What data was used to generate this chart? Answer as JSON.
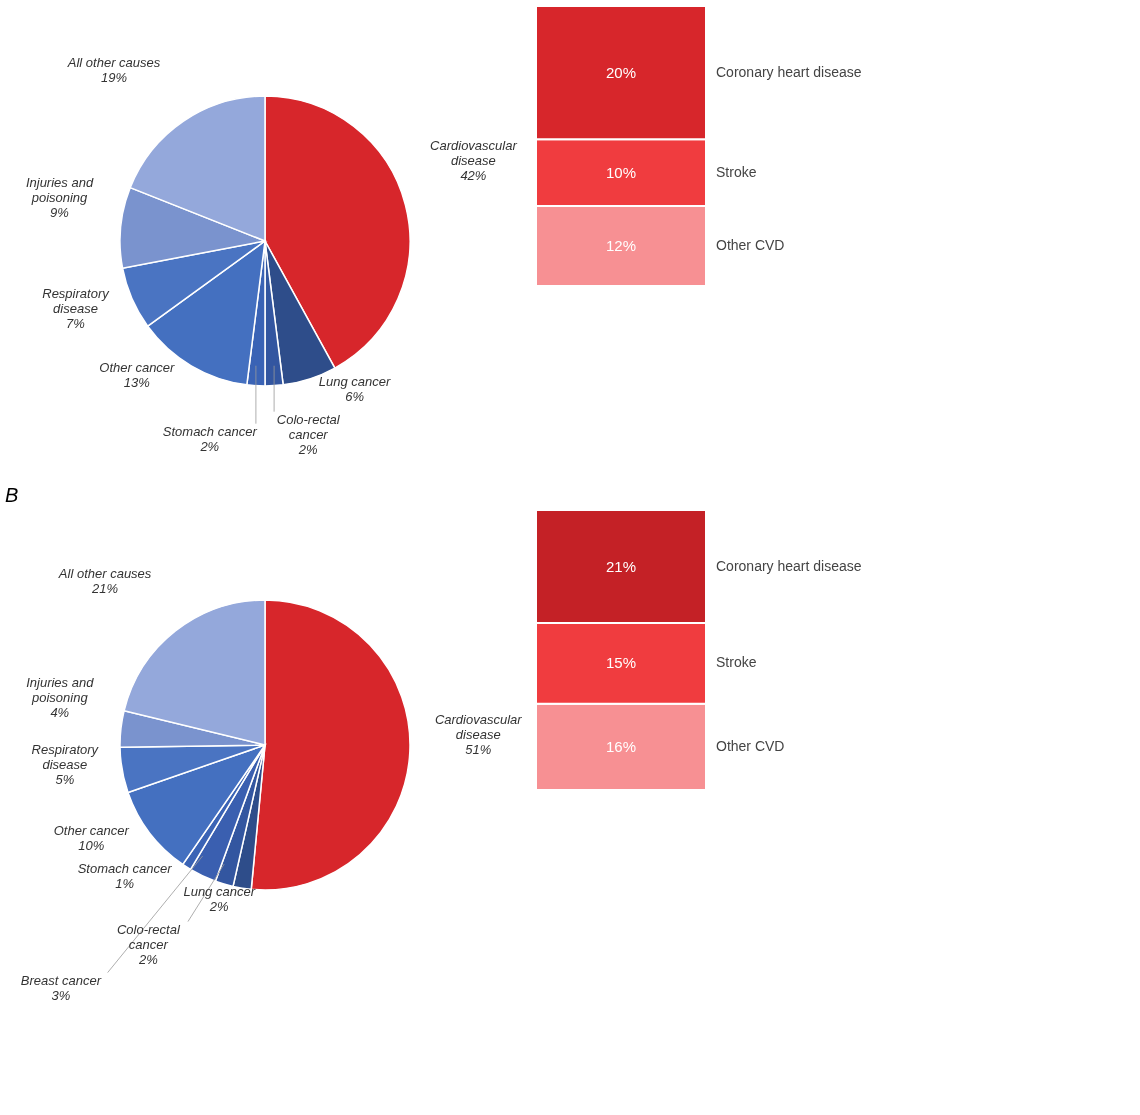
{
  "chart_data": [
    {
      "type": "pie",
      "categories": [
        "Cardiovascular disease",
        "Lung cancer",
        "Colo-rectal cancer",
        "Stomach cancer",
        "Other cancer",
        "Respiratory disease",
        "Injuries and poisoning",
        "All other causes"
      ],
      "values": [
        42,
        6,
        2,
        2,
        13,
        7,
        9,
        19
      ],
      "value_labels": [
        "42%",
        "6%",
        "2%",
        "2%",
        "13%",
        "7%",
        "9%",
        "19%"
      ],
      "colors": [
        "#d7262b",
        "#2e4d8a",
        "#3356a0",
        "#3a63b5",
        "#4470c0",
        "#4a74c2",
        "#7a93ce",
        "#94a8db"
      ]
    },
    {
      "type": "bar",
      "stacked": true,
      "categories": [
        null
      ],
      "tick_labels": false,
      "series": [
        {
          "name": "Other CVD",
          "color": "#f79093",
          "values": [
            12
          ],
          "value_labels": [
            "12%"
          ]
        },
        {
          "name": "Stroke",
          "color": "#f03c3f",
          "values": [
            10
          ],
          "value_labels": [
            "10%"
          ]
        },
        {
          "name": "Coronary heart disease",
          "color": "#d7262b",
          "values": [
            20
          ],
          "value_labels": [
            "20%"
          ]
        }
      ]
    },
    {
      "type": "pie",
      "title": "B",
      "categories": [
        "Cardiovascular disease",
        "Lung cancer",
        "Colo-rectal cancer",
        "Breast cancer",
        "Stomach cancer",
        "Other cancer",
        "Respiratory disease",
        "Injuries and poisoning",
        "All other causes"
      ],
      "values": [
        51,
        2,
        2,
        3,
        1,
        10,
        5,
        4,
        21
      ],
      "value_labels": [
        "51%",
        "2%",
        "2%",
        "3%",
        "1%",
        "10%",
        "5%",
        "4%",
        "21%"
      ],
      "colors": [
        "#d7262b",
        "#2e4d8a",
        "#3356a0",
        "#3a5fb0",
        "#3a63b5",
        "#4470c0",
        "#4a74c2",
        "#7a93ce",
        "#94a8db"
      ]
    },
    {
      "type": "bar",
      "stacked": true,
      "categories": [
        null
      ],
      "tick_labels": false,
      "series": [
        {
          "name": "Other CVD",
          "color": "#f79093",
          "values": [
            16
          ],
          "value_labels": [
            "16%"
          ]
        },
        {
          "name": "Stroke",
          "color": "#f03c3f",
          "values": [
            15
          ],
          "value_labels": [
            "15%"
          ]
        },
        {
          "name": "Coronary heart disease",
          "color": "#c42126",
          "values": [
            21
          ],
          "value_labels": [
            "21%"
          ]
        }
      ]
    }
  ]
}
